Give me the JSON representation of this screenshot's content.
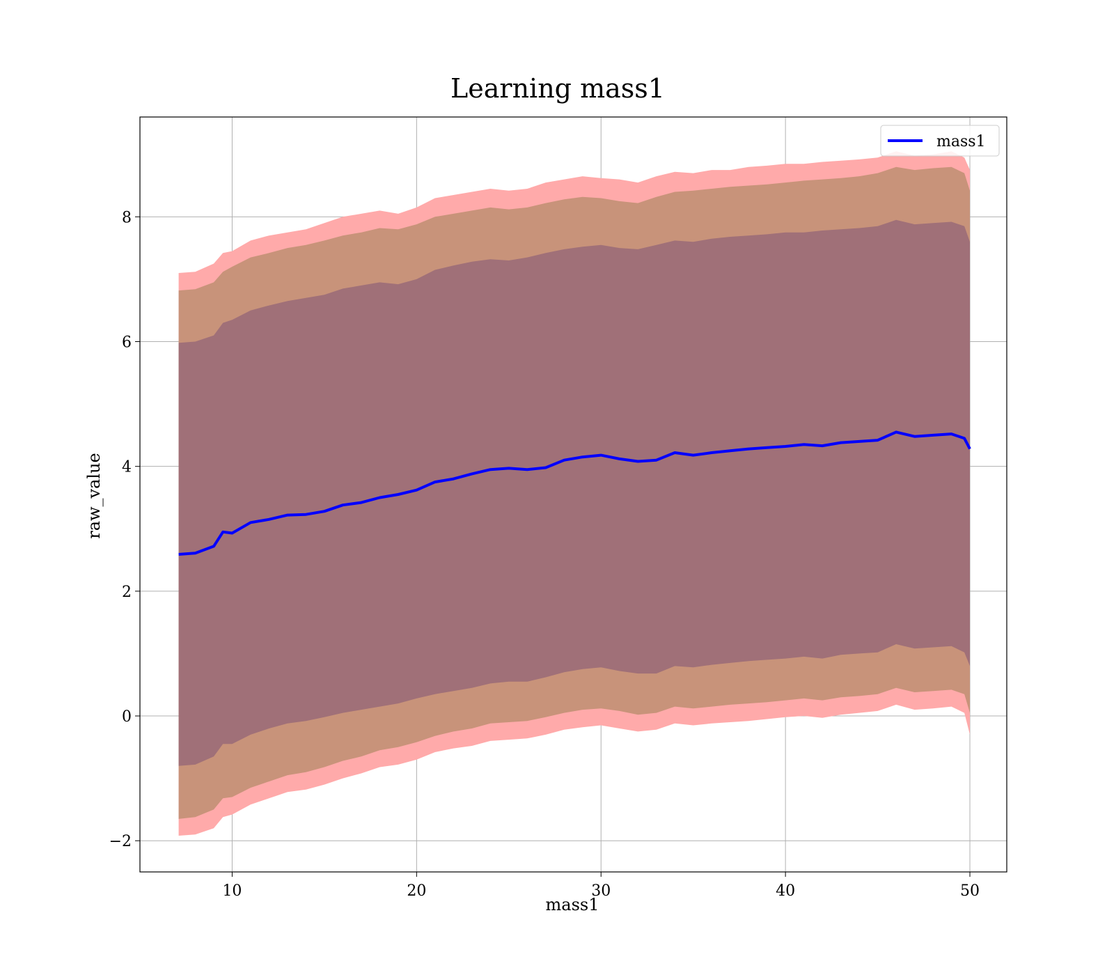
{
  "chart_data": {
    "type": "line",
    "title": "Learning mass1",
    "xlabel": "mass1",
    "ylabel": "raw_value",
    "xlim": [
      5,
      52
    ],
    "ylim": [
      -2.5,
      9.6
    ],
    "xticks": [
      10,
      20,
      30,
      40,
      50
    ],
    "yticks": [
      -2,
      0,
      2,
      4,
      6,
      8
    ],
    "grid": true,
    "legend": {
      "position": "top-right",
      "entries": [
        "mass1"
      ]
    },
    "colors": {
      "line": "#0000ff",
      "band_outer": "#ffaaaa",
      "band_middle": "#c8937a",
      "band_inner": "#a07078"
    },
    "series": [
      {
        "name": "mass1",
        "x": [
          7.1,
          8.0,
          9.0,
          9.5,
          10.0,
          11.0,
          12.0,
          13.0,
          14.0,
          15.0,
          16.0,
          17.0,
          18.0,
          19.0,
          20.0,
          21.0,
          22.0,
          23.0,
          24.0,
          25.0,
          26.0,
          27.0,
          28.0,
          29.0,
          30.0,
          31.0,
          32.0,
          33.0,
          34.0,
          35.0,
          36.0,
          37.0,
          38.0,
          39.0,
          40.0,
          41.0,
          42.0,
          43.0,
          44.0,
          45.0,
          46.0,
          47.0,
          48.0,
          49.0,
          49.7,
          50.0
        ],
        "y": [
          2.59,
          2.61,
          2.72,
          2.95,
          2.93,
          3.1,
          3.15,
          3.22,
          3.23,
          3.28,
          3.38,
          3.42,
          3.5,
          3.55,
          3.62,
          3.75,
          3.8,
          3.88,
          3.95,
          3.97,
          3.95,
          3.98,
          4.1,
          4.15,
          4.18,
          4.12,
          4.08,
          4.1,
          4.22,
          4.18,
          4.22,
          4.25,
          4.28,
          4.3,
          4.32,
          4.35,
          4.33,
          4.38,
          4.4,
          4.42,
          4.55,
          4.48,
          4.5,
          4.52,
          4.45,
          4.28
        ],
        "outer_band_upper": [
          7.1,
          7.12,
          7.25,
          7.42,
          7.45,
          7.62,
          7.7,
          7.75,
          7.8,
          7.9,
          8.0,
          8.05,
          8.1,
          8.05,
          8.15,
          8.3,
          8.35,
          8.4,
          8.45,
          8.42,
          8.45,
          8.55,
          8.6,
          8.65,
          8.62,
          8.6,
          8.55,
          8.65,
          8.72,
          8.7,
          8.75,
          8.75,
          8.8,
          8.82,
          8.85,
          8.85,
          8.88,
          8.9,
          8.92,
          8.95,
          9.05,
          8.98,
          9.0,
          9.05,
          8.95,
          8.75
        ],
        "middle_band_upper": [
          6.82,
          6.84,
          6.95,
          7.12,
          7.2,
          7.35,
          7.42,
          7.5,
          7.55,
          7.62,
          7.7,
          7.75,
          7.82,
          7.8,
          7.88,
          8.0,
          8.05,
          8.1,
          8.15,
          8.12,
          8.15,
          8.22,
          8.28,
          8.32,
          8.3,
          8.25,
          8.22,
          8.32,
          8.4,
          8.42,
          8.45,
          8.48,
          8.5,
          8.52,
          8.55,
          8.58,
          8.6,
          8.62,
          8.65,
          8.7,
          8.8,
          8.75,
          8.78,
          8.8,
          8.7,
          8.42
        ],
        "inner_band_upper": [
          5.98,
          6.0,
          6.1,
          6.3,
          6.35,
          6.5,
          6.58,
          6.65,
          6.7,
          6.75,
          6.85,
          6.9,
          6.95,
          6.92,
          7.0,
          7.15,
          7.22,
          7.28,
          7.32,
          7.3,
          7.35,
          7.42,
          7.48,
          7.52,
          7.55,
          7.5,
          7.48,
          7.55,
          7.62,
          7.6,
          7.65,
          7.68,
          7.7,
          7.72,
          7.75,
          7.75,
          7.78,
          7.8,
          7.82,
          7.85,
          7.95,
          7.88,
          7.9,
          7.92,
          7.85,
          7.6
        ],
        "inner_band_lower": [
          -0.8,
          -0.78,
          -0.65,
          -0.45,
          -0.45,
          -0.3,
          -0.2,
          -0.12,
          -0.08,
          -0.02,
          0.05,
          0.1,
          0.15,
          0.2,
          0.28,
          0.35,
          0.4,
          0.45,
          0.52,
          0.55,
          0.55,
          0.62,
          0.7,
          0.75,
          0.78,
          0.72,
          0.68,
          0.68,
          0.8,
          0.78,
          0.82,
          0.85,
          0.88,
          0.9,
          0.92,
          0.95,
          0.92,
          0.98,
          1.0,
          1.02,
          1.15,
          1.08,
          1.1,
          1.12,
          1.02,
          0.8
        ],
        "middle_band_lower": [
          -1.65,
          -1.62,
          -1.5,
          -1.32,
          -1.3,
          -1.15,
          -1.05,
          -0.95,
          -0.9,
          -0.82,
          -0.72,
          -0.65,
          -0.55,
          -0.5,
          -0.42,
          -0.32,
          -0.25,
          -0.2,
          -0.12,
          -0.1,
          -0.08,
          -0.02,
          0.05,
          0.1,
          0.12,
          0.08,
          0.02,
          0.05,
          0.15,
          0.12,
          0.15,
          0.18,
          0.2,
          0.22,
          0.25,
          0.28,
          0.25,
          0.3,
          0.32,
          0.35,
          0.45,
          0.38,
          0.4,
          0.42,
          0.35,
          0.05
        ],
        "outer_band_lower": [
          -1.92,
          -1.9,
          -1.8,
          -1.62,
          -1.58,
          -1.42,
          -1.32,
          -1.22,
          -1.18,
          -1.1,
          -1.0,
          -0.92,
          -0.82,
          -0.78,
          -0.7,
          -0.58,
          -0.52,
          -0.48,
          -0.4,
          -0.38,
          -0.36,
          -0.3,
          -0.22,
          -0.18,
          -0.15,
          -0.2,
          -0.25,
          -0.22,
          -0.12,
          -0.15,
          -0.12,
          -0.1,
          -0.08,
          -0.05,
          -0.02,
          0.0,
          -0.03,
          0.02,
          0.05,
          0.08,
          0.18,
          0.1,
          0.12,
          0.15,
          0.05,
          -0.3
        ]
      }
    ]
  }
}
